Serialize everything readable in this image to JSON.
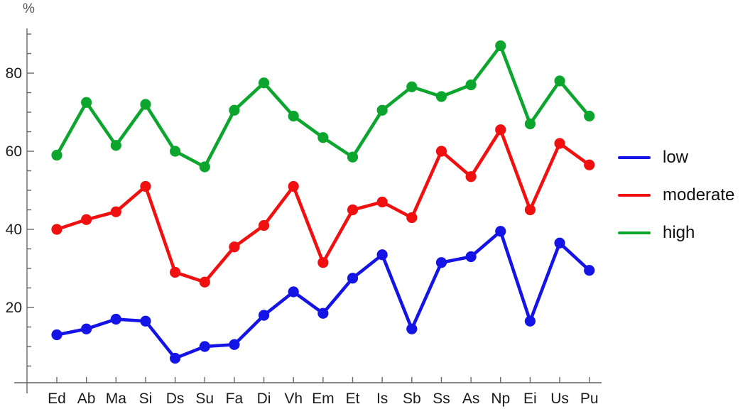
{
  "chart_data": {
    "type": "line",
    "title": "",
    "xlabel": "",
    "ylabel": "%",
    "grid": false,
    "legend_position": "right-middle",
    "ylim": [
      0,
      92
    ],
    "y_major_ticks": [
      20,
      40,
      60,
      80
    ],
    "y_minor_step": 5,
    "axis_color": "#666666",
    "tick_label_color": "#1a1a1a",
    "categories": [
      "Ed",
      "Ab",
      "Ma",
      "Si",
      "Ds",
      "Su",
      "Fa",
      "Di",
      "Vh",
      "Em",
      "Et",
      "Is",
      "Sb",
      "Ss",
      "As",
      "Np",
      "Ei",
      "Us",
      "Pu"
    ],
    "series": [
      {
        "name": "low",
        "color": "#1414e6",
        "values": [
          13,
          14.5,
          17,
          16.5,
          7,
          10,
          10.5,
          18,
          24,
          18.5,
          27.5,
          33.5,
          14.5,
          31.5,
          33,
          39.5,
          16.5,
          36.5,
          29.5
        ]
      },
      {
        "name": "moderate",
        "color": "#f11010",
        "values": [
          40,
          42.5,
          44.5,
          51,
          29,
          26.5,
          35.5,
          41,
          51,
          31.5,
          45,
          47,
          43,
          60,
          53.5,
          65.5,
          45,
          62,
          56.5
        ]
      },
      {
        "name": "high",
        "color": "#0ca52d",
        "values": [
          59,
          72.5,
          61.5,
          72,
          60,
          56,
          70.5,
          77.5,
          69,
          63.5,
          58.5,
          70.5,
          76.5,
          74,
          77,
          87,
          67,
          78,
          69
        ]
      }
    ]
  }
}
